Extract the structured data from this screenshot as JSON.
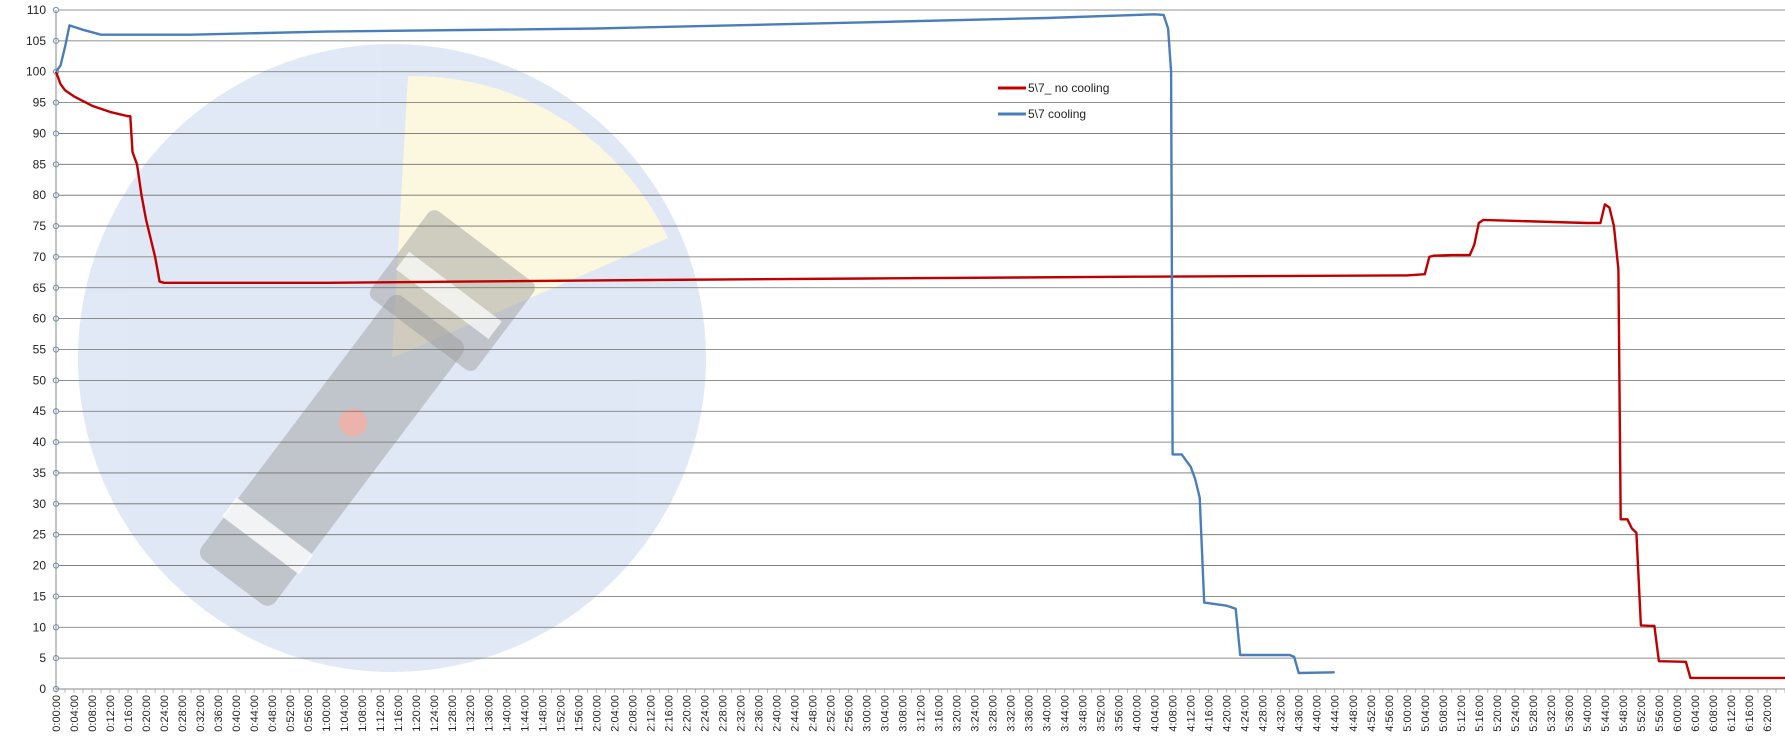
{
  "chart_data": {
    "type": "line",
    "ylim": [
      0,
      110
    ],
    "y_ticks": [
      0,
      5,
      10,
      15,
      20,
      25,
      30,
      35,
      40,
      45,
      50,
      55,
      60,
      65,
      70,
      75,
      80,
      85,
      90,
      95,
      100,
      105,
      110
    ],
    "x_range_minutes": [
      0,
      384
    ],
    "x_tick_step_minutes": 2,
    "x_tick_labels": [
      "0:00:00",
      "0:04:00",
      "0:08:00",
      "0:12:00",
      "0:16:00",
      "0:20:00",
      "0:24:00",
      "0:28:00",
      "0:32:00",
      "0:36:00",
      "0:40:00",
      "0:44:00",
      "0:48:00",
      "0:52:00",
      "0:56:00",
      "1:00:00",
      "1:04:00",
      "1:08:00",
      "1:12:00",
      "1:16:00",
      "1:20:00",
      "1:24:00",
      "1:28:00",
      "1:32:00",
      "1:36:00",
      "1:40:00",
      "1:44:00",
      "1:48:00",
      "1:52:00",
      "1:56:00",
      "2:00:00",
      "2:04:00",
      "2:08:00",
      "2:12:00",
      "2:16:00",
      "2:20:00",
      "2:24:00",
      "2:28:00",
      "2:32:00",
      "2:36:00",
      "2:40:00",
      "2:44:00",
      "2:48:00",
      "2:52:00",
      "2:56:00",
      "3:00:00",
      "3:04:00",
      "3:08:00",
      "3:12:00",
      "3:16:00",
      "3:20:00",
      "3:24:00",
      "3:28:00",
      "3:32:00",
      "3:36:00",
      "3:40:00",
      "3:44:00",
      "3:48:00",
      "3:52:00",
      "3:56:00",
      "4:00:00",
      "4:04:00",
      "4:08:00",
      "4:12:00",
      "4:16:00",
      "4:20:00",
      "4:24:00",
      "4:28:00",
      "4:32:00",
      "4:36:00",
      "4:40:00",
      "4:44:00",
      "4:48:00",
      "4:52:00",
      "4:56:00",
      "5:00:00",
      "5:04:00",
      "5:08:00",
      "5:12:00",
      "5:16:00",
      "5:20:00",
      "5:24:00",
      "5:28:00",
      "5:32:00",
      "5:36:00",
      "5:40:00",
      "5:44:00",
      "5:48:00",
      "5:52:00",
      "5:56:00",
      "6:00:00",
      "6:04:00",
      "6:08:00",
      "6:12:00",
      "6:16:00",
      "6:20:00"
    ],
    "grid": true,
    "legend": "upper-center",
    "series": [
      {
        "name": "5\\7_ no cooling",
        "color": "#c00000",
        "points": [
          [
            "0:00:00",
            100
          ],
          [
            "0:01:00",
            98
          ],
          [
            "0:02:00",
            97
          ],
          [
            "0:04:00",
            96
          ],
          [
            "0:08:00",
            94.5
          ],
          [
            "0:12:00",
            93.5
          ],
          [
            "0:16:00",
            92.8
          ],
          [
            "0:16:30",
            92.8
          ],
          [
            "0:17:00",
            87
          ],
          [
            "0:18:00",
            85
          ],
          [
            "0:19:00",
            80
          ],
          [
            "0:20:00",
            76
          ],
          [
            "0:21:00",
            73
          ],
          [
            "0:22:00",
            70
          ],
          [
            "0:23:00",
            66
          ],
          [
            "0:24:00",
            65.8
          ],
          [
            "0:30:00",
            65.8
          ],
          [
            "1:00:00",
            65.8
          ],
          [
            "2:00:00",
            66.2
          ],
          [
            "3:00:00",
            66.5
          ],
          [
            "4:00:00",
            66.8
          ],
          [
            "5:00:00",
            67
          ],
          [
            "5:04:00",
            67.2
          ],
          [
            "5:05:00",
            70
          ],
          [
            "5:06:00",
            70.2
          ],
          [
            "5:10:00",
            70.3
          ],
          [
            "5:14:00",
            70.3
          ],
          [
            "5:15:00",
            72
          ],
          [
            "5:16:00",
            75.5
          ],
          [
            "5:17:00",
            76
          ],
          [
            "5:40:00",
            75.5
          ],
          [
            "5:43:00",
            75.5
          ],
          [
            "5:44:00",
            78.5
          ],
          [
            "5:45:00",
            78
          ],
          [
            "5:46:00",
            75
          ],
          [
            "5:47:00",
            68
          ],
          [
            "5:47:30",
            27.5
          ],
          [
            "5:49:00",
            27.5
          ],
          [
            "5:50:00",
            26
          ],
          [
            "5:51:00",
            25.3
          ],
          [
            "5:52:00",
            10.3
          ],
          [
            "5:55:00",
            10.2
          ],
          [
            "5:56:00",
            4.5
          ],
          [
            "6:02:00",
            4.4
          ],
          [
            "6:03:00",
            1.8
          ],
          [
            "6:24:00",
            1.8
          ]
        ]
      },
      {
        "name": "5\\7 cooling",
        "color": "#4a7ebb",
        "points": [
          [
            "0:00:00",
            100
          ],
          [
            "0:01:00",
            101
          ],
          [
            "0:02:00",
            104
          ],
          [
            "0:03:00",
            107.5
          ],
          [
            "0:06:00",
            106.8
          ],
          [
            "0:10:00",
            106
          ],
          [
            "0:30:00",
            106
          ],
          [
            "1:00:00",
            106.5
          ],
          [
            "2:00:00",
            107
          ],
          [
            "3:00:00",
            108
          ],
          [
            "3:40:00",
            108.7
          ],
          [
            "4:04:00",
            109.3
          ],
          [
            "4:06:00",
            109.2
          ],
          [
            "4:07:00",
            107
          ],
          [
            "4:07:40",
            100
          ],
          [
            "4:08:00",
            38
          ],
          [
            "4:10:00",
            38
          ],
          [
            "4:12:00",
            36
          ],
          [
            "4:13:00",
            34
          ],
          [
            "4:14:00",
            31
          ],
          [
            "4:15:00",
            14
          ],
          [
            "4:20:00",
            13.5
          ],
          [
            "4:22:00",
            13
          ],
          [
            "4:23:00",
            5.5
          ],
          [
            "4:34:00",
            5.5
          ],
          [
            "4:35:00",
            5.2
          ],
          [
            "4:36:00",
            2.6
          ],
          [
            "4:44:00",
            2.7
          ]
        ]
      }
    ]
  }
}
